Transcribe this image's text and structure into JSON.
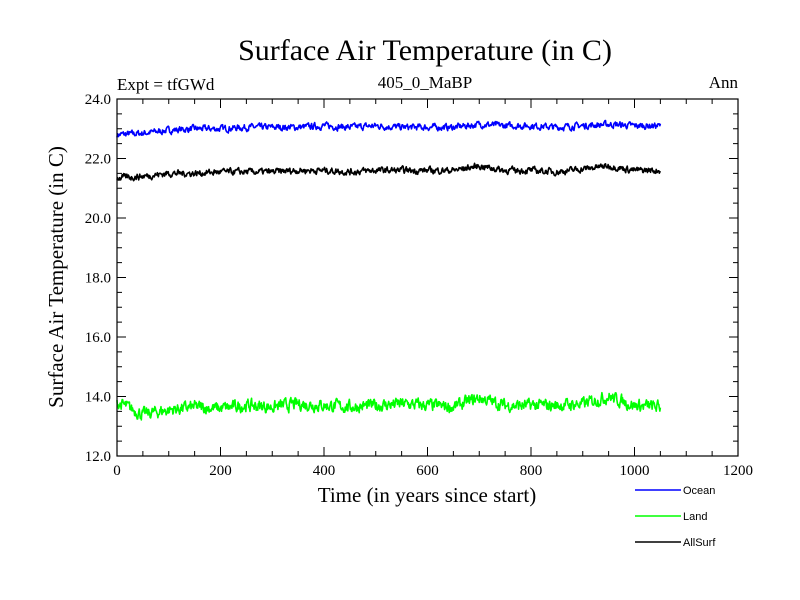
{
  "chart_data": {
    "type": "line",
    "title": "Surface Air Temperature (in C)",
    "subtitle_left": "Expt = tfGWd",
    "subtitle_center": "405_0_MaBP",
    "subtitle_right": "Ann",
    "xlabel": "Time (in years since start)",
    "ylabel": "Surface Air Temperature (in C)",
    "xlim": [
      0,
      1200
    ],
    "ylim": [
      12.0,
      24.0
    ],
    "x_ticks": [
      0,
      200,
      400,
      600,
      800,
      1000,
      1200
    ],
    "x_tick_labels": [
      "0",
      "200",
      "400",
      "600",
      "800",
      "1000",
      "1200"
    ],
    "y_ticks": [
      12,
      14,
      16,
      18,
      20,
      22,
      24
    ],
    "y_tick_labels": [
      "12.0",
      "14.0",
      "16.0",
      "18.0",
      "20.0",
      "22.0",
      "24.0"
    ],
    "series": [
      {
        "name": "Ocean",
        "color": "#0000ff",
        "x": [
          0,
          50,
          100,
          150,
          200,
          250,
          300,
          350,
          400,
          450,
          500,
          550,
          600,
          650,
          700,
          750,
          800,
          850,
          900,
          950,
          1000,
          1050
        ],
        "values": [
          22.8,
          22.85,
          22.95,
          23.0,
          23.0,
          23.05,
          23.05,
          23.05,
          23.1,
          23.05,
          23.1,
          23.05,
          23.05,
          23.05,
          23.15,
          23.1,
          23.1,
          23.05,
          23.1,
          23.15,
          23.1,
          23.1
        ]
      },
      {
        "name": "Land",
        "color": "#00ff00",
        "x": [
          0,
          50,
          100,
          150,
          200,
          250,
          300,
          350,
          400,
          450,
          500,
          550,
          600,
          650,
          700,
          750,
          800,
          850,
          900,
          950,
          1000,
          1050
        ],
        "values": [
          13.8,
          13.4,
          13.55,
          13.65,
          13.6,
          13.7,
          13.65,
          13.75,
          13.7,
          13.65,
          13.7,
          13.75,
          13.7,
          13.65,
          13.95,
          13.7,
          13.7,
          13.7,
          13.75,
          14.0,
          13.7,
          13.65
        ]
      },
      {
        "name": "AllSurf",
        "color": "#000000",
        "x": [
          0,
          50,
          100,
          150,
          200,
          250,
          300,
          350,
          400,
          450,
          500,
          550,
          600,
          650,
          700,
          750,
          800,
          850,
          900,
          950,
          1000,
          1050
        ],
        "values": [
          21.35,
          21.4,
          21.5,
          21.5,
          21.55,
          21.55,
          21.55,
          21.6,
          21.6,
          21.55,
          21.6,
          21.6,
          21.6,
          21.6,
          21.75,
          21.6,
          21.6,
          21.55,
          21.65,
          21.75,
          21.6,
          21.6
        ]
      }
    ],
    "legend": [
      "Ocean",
      "Land",
      "AllSurf"
    ],
    "legend_position": "bottom-right"
  }
}
